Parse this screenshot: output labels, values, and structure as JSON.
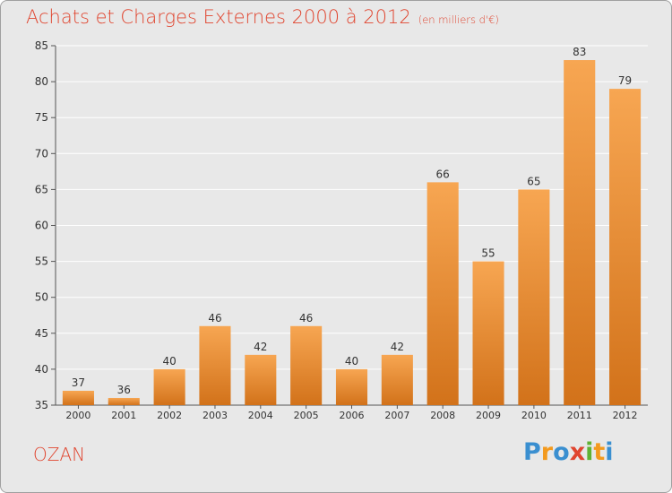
{
  "title": "Achats et Charges Externes 2000 à 2012",
  "unit": "(en milliers d'€)",
  "footer_label": "OZAN",
  "logo": {
    "text": "Proxiti",
    "letters": [
      {
        "ch": "P",
        "color": "#3a8fd0"
      },
      {
        "ch": "r",
        "color": "#f39a1e"
      },
      {
        "ch": "o",
        "color": "#3a8fd0"
      },
      {
        "ch": "x",
        "color": "#e0452f"
      },
      {
        "ch": "i",
        "color": "#5fb233"
      },
      {
        "ch": "t",
        "color": "#f39a1e"
      },
      {
        "ch": "i",
        "color": "#3a8fd0"
      }
    ]
  },
  "colors": {
    "bar_top": "#f7a652",
    "bar_bottom": "#d2721a",
    "grid": "#ffffff",
    "axis_text": "#333333",
    "accent": "#e0452f"
  },
  "chart_data": {
    "type": "bar",
    "categories": [
      "2000",
      "2001",
      "2002",
      "2003",
      "2004",
      "2005",
      "2006",
      "2007",
      "2008",
      "2009",
      "2010",
      "2011",
      "2012"
    ],
    "values": [
      37,
      36,
      40,
      46,
      42,
      46,
      40,
      42,
      66,
      55,
      65,
      83,
      79
    ],
    "title": "Achats et Charges Externes 2000 à 2012",
    "xlabel": "",
    "ylabel": "",
    "ylim": [
      35,
      85
    ],
    "yticks": [
      35,
      40,
      45,
      50,
      55,
      60,
      65,
      70,
      75,
      80,
      85
    ],
    "grid": true,
    "data_labels": true
  }
}
